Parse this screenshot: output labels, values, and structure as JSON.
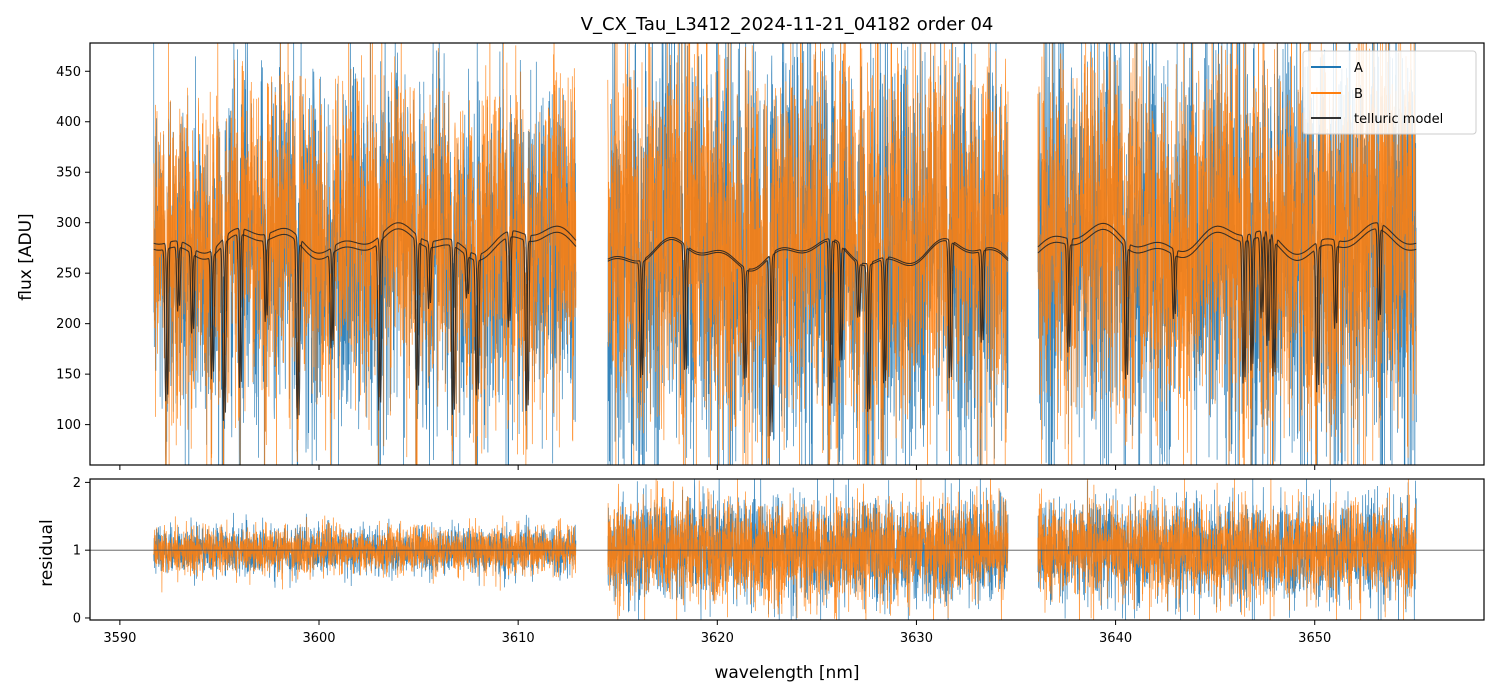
{
  "chart_data": [
    {
      "panel": "top",
      "type": "line",
      "title": "V_CX_Tau_L3412_2024-11-21_04182  order 04",
      "xlabel": "",
      "ylabel": "flux [ADU]",
      "xlim": [
        3588.5,
        3658.5
      ],
      "ylim": [
        60,
        478
      ],
      "yticks": [
        100,
        150,
        200,
        250,
        300,
        350,
        400,
        450
      ],
      "xticks": [
        3590,
        3600,
        3610,
        3620,
        3630,
        3640,
        3650
      ],
      "segments": [
        [
          3591.7,
          3612.9
        ],
        [
          3614.5,
          3634.6
        ],
        [
          3636.1,
          3655.1
        ]
      ],
      "series": [
        {
          "name": "A",
          "color": "#1f77b4",
          "level": 280,
          "noise": 95
        },
        {
          "name": "B",
          "color": "#ff7f0e",
          "level": 292,
          "noise": 85
        },
        {
          "name": "telluric model",
          "color": "#333333",
          "continuum": [
            278,
            268,
            284,
            270
          ]
        }
      ],
      "telluric_lines": [
        3592.3,
        3592.9,
        3593.6,
        3594.6,
        3595.2,
        3596.0,
        3597.3,
        3598.9,
        3600.6,
        3603.0,
        3604.9,
        3605.5,
        3606.7,
        3607.4,
        3607.9,
        3609.5,
        3610.4,
        3616.1,
        3618.3,
        3621.3,
        3622.6,
        3625.6,
        3626.1,
        3627.0,
        3627.5,
        3628.3,
        3631.6,
        3633.2,
        3637.6,
        3640.5,
        3642.9,
        3646.4,
        3646.8,
        3647.3,
        3647.6,
        3647.9,
        3650.1,
        3651.0,
        3653.2
      ],
      "legend": {
        "entries": [
          "A",
          "B",
          "telluric model"
        ],
        "location": "upper right"
      }
    },
    {
      "panel": "bottom",
      "type": "line",
      "xlabel": "wavelength [nm]",
      "ylabel": "residual",
      "xlim": [
        3588.5,
        3658.5
      ],
      "ylim": [
        -0.03,
        2.05
      ],
      "yticks": [
        0,
        1,
        2
      ],
      "xticks": [
        3590,
        3600,
        3610,
        3620,
        3630,
        3640,
        3650
      ],
      "reference_line": 1,
      "segment_noise": [
        0.17,
        0.38,
        0.36
      ]
    }
  ]
}
